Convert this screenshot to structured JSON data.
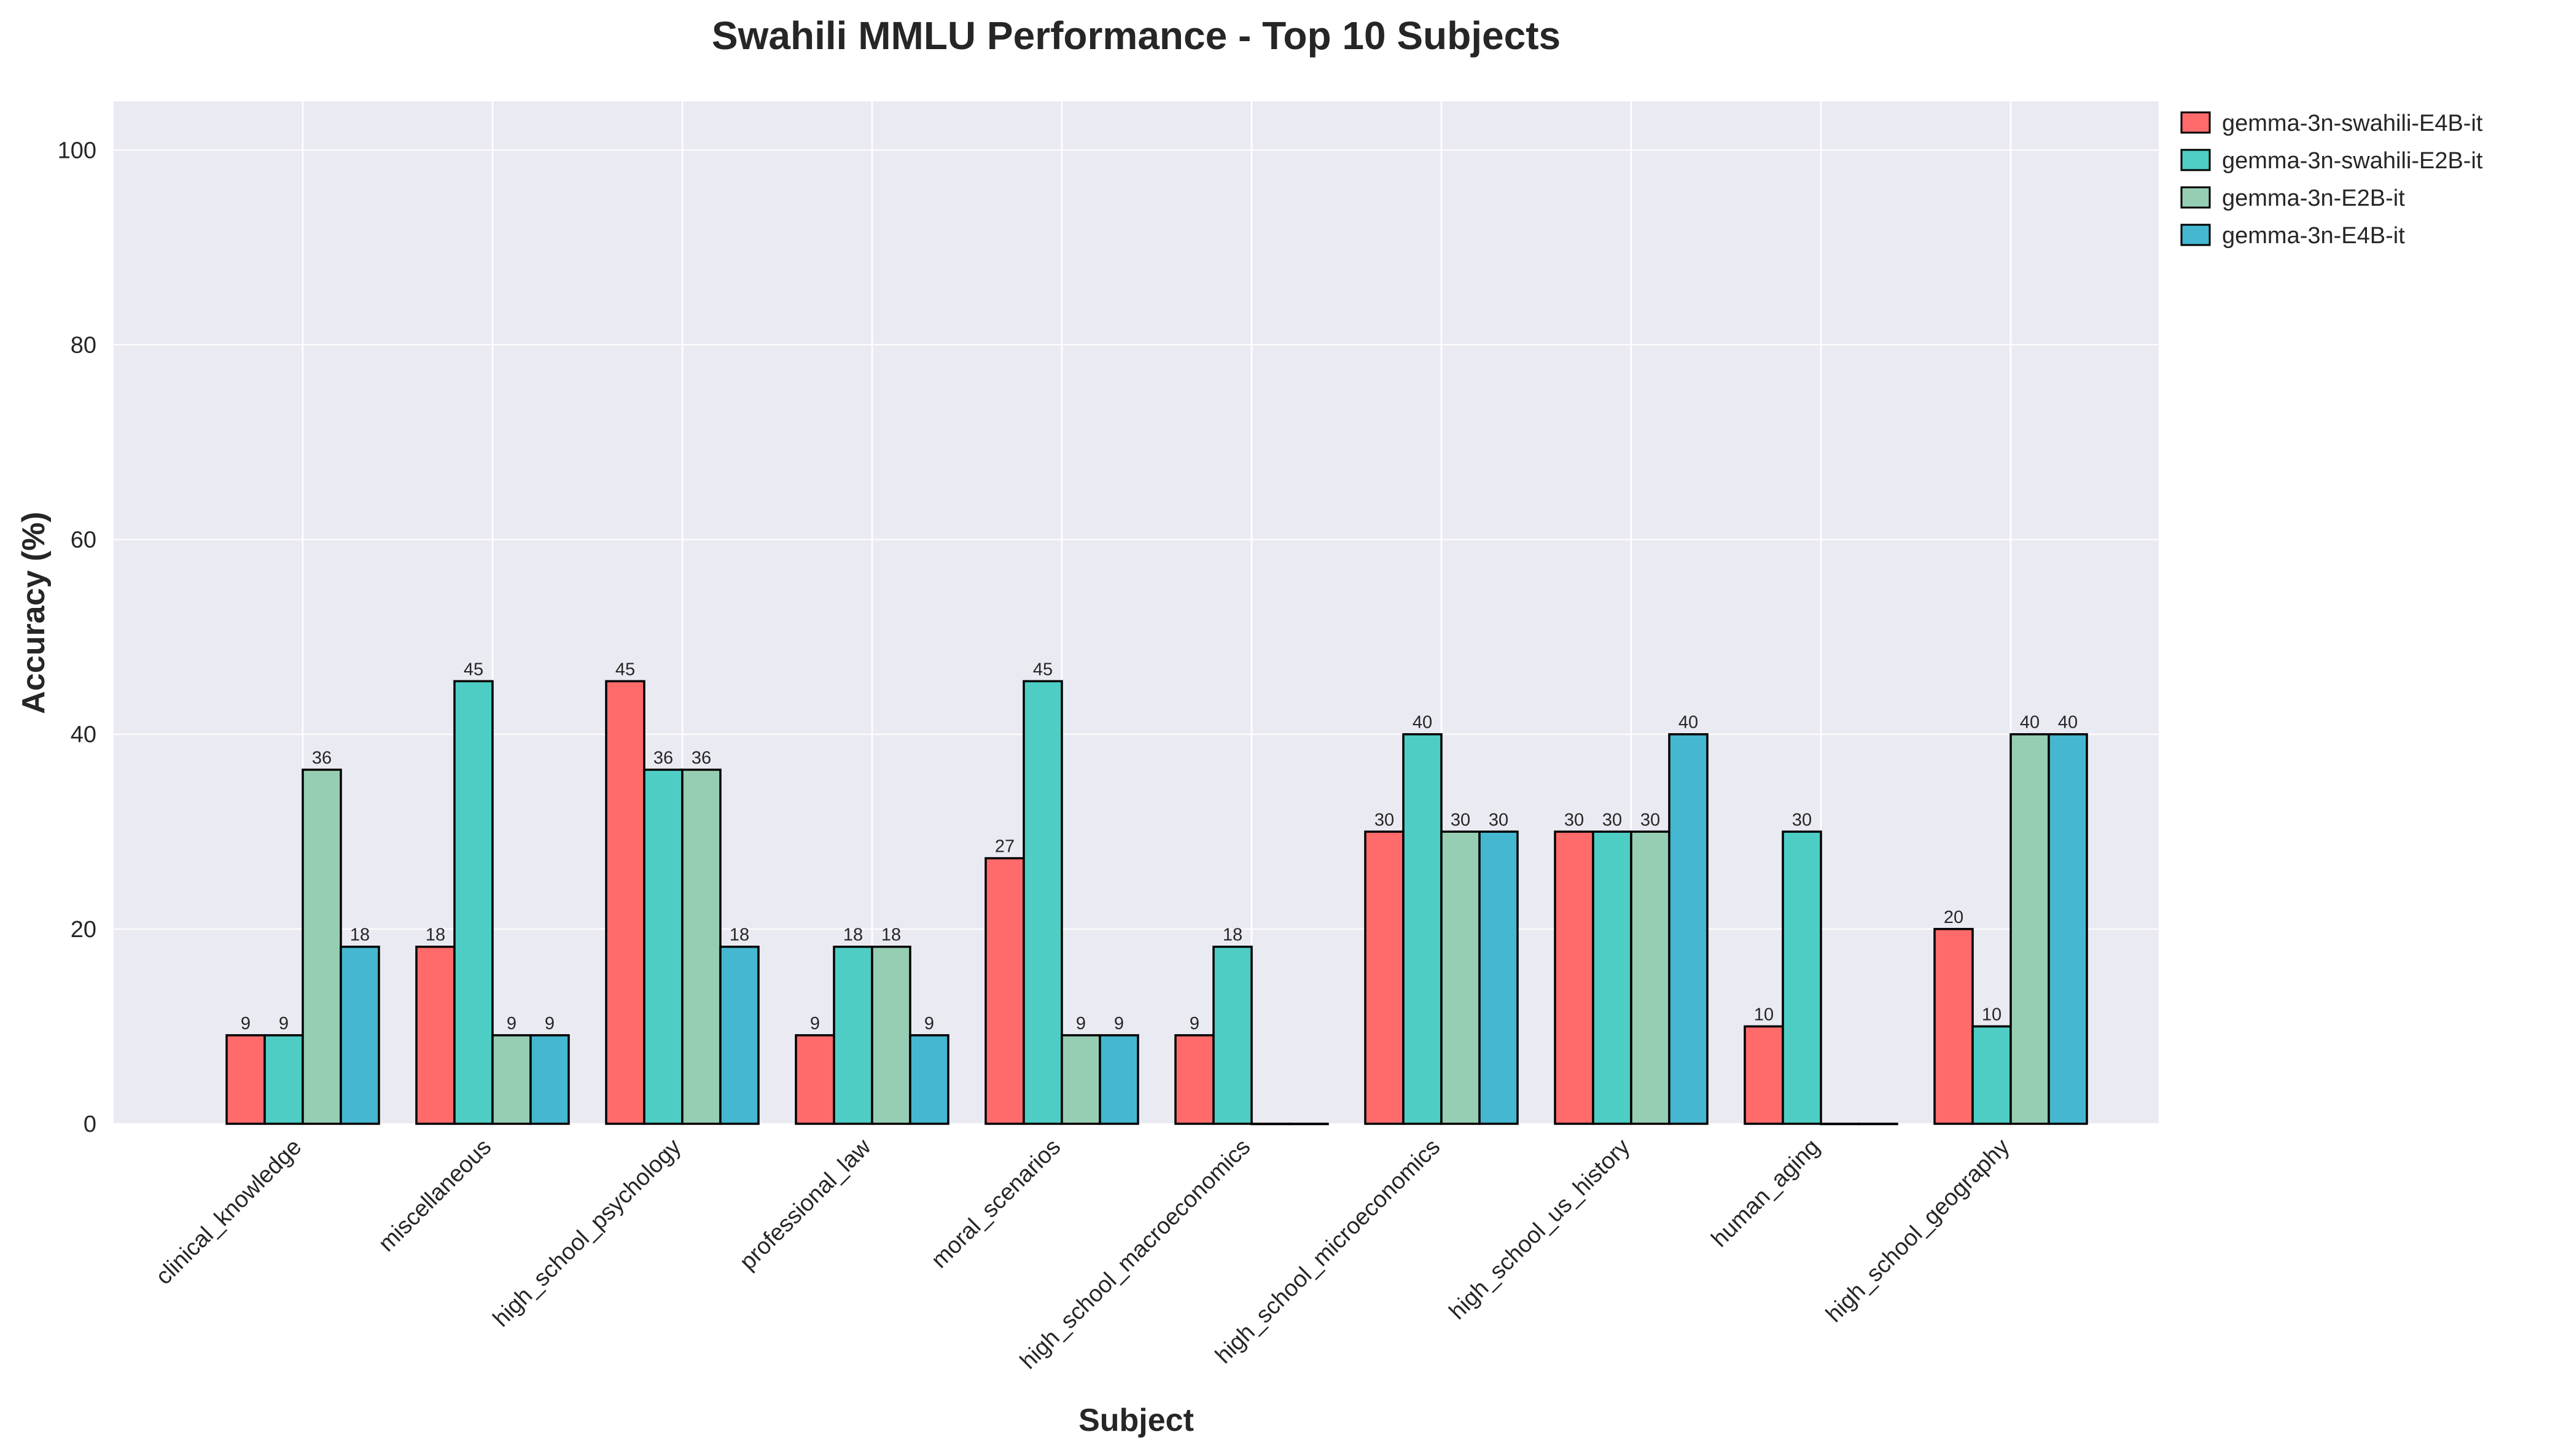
{
  "chart_data": {
    "type": "bar",
    "title": "Swahili MMLU Performance - Top 10 Subjects",
    "xlabel": "Subject",
    "ylabel": "Accuracy (%)",
    "ylim": [
      0,
      105
    ],
    "yticks": [
      0,
      20,
      40,
      60,
      80,
      100
    ],
    "grid": true,
    "legend_position": "outside top-right",
    "categories": [
      "clinical_knowledge",
      "miscellaneous",
      "high_school_psychology",
      "professional_law",
      "moral_scenarios",
      "high_school_macroeconomics",
      "high_school_microeconomics",
      "high_school_us_history",
      "human_aging",
      "high_school_geography"
    ],
    "series": [
      {
        "name": "gemma-3n-swahili-E4B-it",
        "color": "#ff6b6b",
        "values": [
          9.09,
          18.18,
          45.45,
          9.09,
          27.27,
          9.09,
          30,
          30,
          10,
          20
        ],
        "labels": [
          "9",
          "18",
          "45",
          "9",
          "27",
          "9",
          "30",
          "30",
          "10",
          "20"
        ]
      },
      {
        "name": "gemma-3n-swahili-E2B-it",
        "color": "#4ecdc4",
        "values": [
          9.09,
          45.45,
          36.36,
          18.18,
          45.45,
          18.18,
          40,
          30,
          30,
          10
        ],
        "labels": [
          "9",
          "45",
          "36",
          "18",
          "45",
          "18",
          "40",
          "30",
          "30",
          "10"
        ]
      },
      {
        "name": "gemma-3n-E2B-it",
        "color": "#96ceb4",
        "values": [
          36.36,
          9.09,
          36.36,
          18.18,
          9.09,
          0,
          30,
          30,
          0,
          40
        ],
        "labels": [
          "36",
          "9",
          "36",
          "18",
          "9",
          "",
          "30",
          "30",
          "",
          "40"
        ]
      },
      {
        "name": "gemma-3n-E4B-it",
        "color": "#45b7d1",
        "values": [
          18.18,
          9.09,
          18.18,
          9.09,
          9.09,
          0,
          30,
          40,
          0,
          40
        ],
        "labels": [
          "18",
          "9",
          "18",
          "9",
          "9",
          "",
          "30",
          "40",
          "",
          "40"
        ]
      }
    ]
  }
}
